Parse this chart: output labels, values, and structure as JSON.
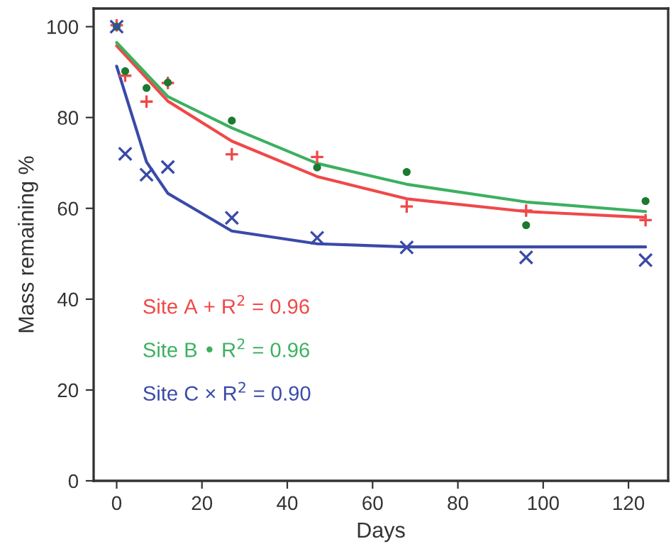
{
  "chart_data": {
    "type": "scatter",
    "xlabel": "Days",
    "ylabel": "Mass remaining %",
    "xlim": [
      -5.4,
      129.3
    ],
    "ylim": [
      0,
      104
    ],
    "xticks": [
      0,
      20,
      40,
      60,
      80,
      100,
      120
    ],
    "yticks": [
      0,
      20,
      40,
      60,
      80,
      100
    ],
    "grid": false,
    "legend": false,
    "series": [
      {
        "marker": "plus",
        "color": "#f04848",
        "x": [
          0,
          2,
          7,
          12,
          27,
          47,
          68,
          96,
          124
        ],
        "values": [
          100.3,
          89.2,
          83.5,
          87.6,
          71.9,
          71.3,
          60.4,
          59.5,
          57.4
        ]
      },
      {
        "marker": "circle",
        "color": "#1a7a30",
        "x": [
          0,
          2,
          7,
          12,
          27,
          47,
          68,
          96,
          124
        ],
        "values": [
          100,
          90.2,
          86.5,
          87.7,
          79.3,
          69.0,
          68.0,
          56.3,
          61.6
        ]
      },
      {
        "marker": "cross",
        "color": "#3a4aa8",
        "x": [
          0,
          2,
          7,
          12,
          27,
          47,
          68,
          96,
          124
        ],
        "values": [
          100,
          72.0,
          67.4,
          69.1,
          57.9,
          53.5,
          51.4,
          49.2,
          48.6
        ]
      },
      {
        "type": "line",
        "marker": "none",
        "color": "#f04848",
        "x": [
          0,
          12,
          27,
          47,
          68,
          96,
          124
        ],
        "values": [
          95.8,
          83.6,
          74.8,
          67.0,
          62.1,
          59.3,
          58.0
        ]
      },
      {
        "type": "line",
        "marker": "none",
        "color": "#3cb060",
        "x": [
          0,
          12,
          27,
          47,
          68,
          96,
          124
        ],
        "values": [
          96.5,
          84.6,
          77.7,
          69.9,
          65.3,
          61.4,
          59.3
        ]
      },
      {
        "type": "line",
        "marker": "none",
        "color": "#3a4aa8",
        "x": [
          0,
          7,
          12,
          27,
          47,
          68,
          96,
          124
        ],
        "values": [
          91.3,
          70.2,
          63.3,
          55.0,
          52.2,
          51.5,
          51.5,
          51.5
        ]
      }
    ],
    "annotations": [
      "Site A + R$^{2}$ = 0.96",
      "Site B • R$^{2}$ = 0.96",
      "Site C × R$^{2}$ = 0.90"
    ]
  }
}
